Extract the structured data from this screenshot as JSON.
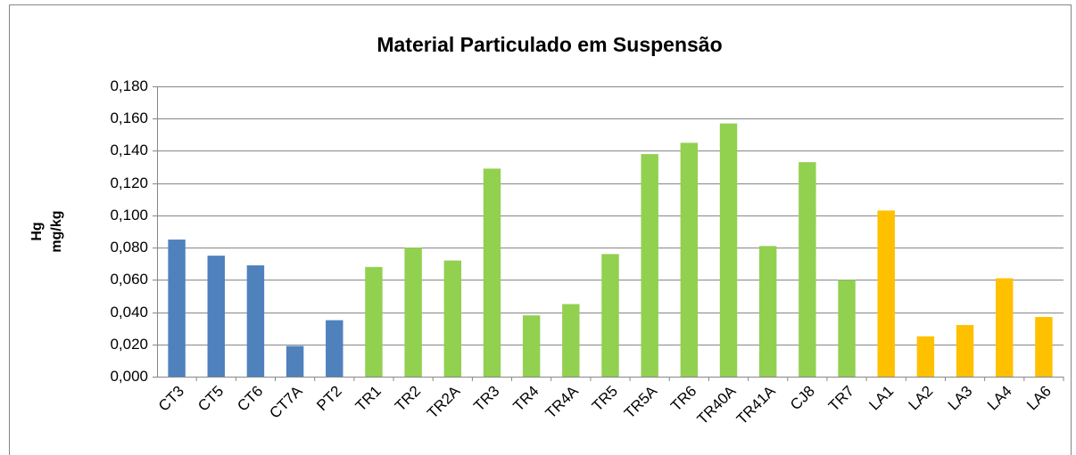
{
  "chart_data": {
    "type": "bar",
    "title": "Material Particulado em Suspensão",
    "ylabel": [
      "Hg",
      "mg/kg"
    ],
    "categories": [
      "CT3",
      "CT5",
      "CT6",
      "CT7A",
      "PT2",
      "TR1",
      "TR2",
      "TR2A",
      "TR3",
      "TR4",
      "TR4A",
      "TR5",
      "TR5A",
      "TR6",
      "TR40A",
      "TR41A",
      "CJ8",
      "TR7",
      "LA1",
      "LA2",
      "LA3",
      "LA4",
      "LA6"
    ],
    "values": [
      0.085,
      0.075,
      0.069,
      0.019,
      0.035,
      0.068,
      0.08,
      0.072,
      0.129,
      0.038,
      0.045,
      0.076,
      0.138,
      0.145,
      0.157,
      0.081,
      0.133,
      0.06,
      0.103,
      0.025,
      0.032,
      0.061,
      0.037
    ],
    "colors": [
      "#4f81bd",
      "#4f81bd",
      "#4f81bd",
      "#4f81bd",
      "#4f81bd",
      "#92d050",
      "#92d050",
      "#92d050",
      "#92d050",
      "#92d050",
      "#92d050",
      "#92d050",
      "#92d050",
      "#92d050",
      "#92d050",
      "#92d050",
      "#92d050",
      "#92d050",
      "#ffc000",
      "#ffc000",
      "#ffc000",
      "#ffc000",
      "#ffc000"
    ],
    "ylim": [
      0,
      0.18
    ],
    "yticks": [
      {
        "value": 0,
        "label": "0,000"
      },
      {
        "value": 0.02,
        "label": "0,020"
      },
      {
        "value": 0.04,
        "label": "0,040"
      },
      {
        "value": 0.06,
        "label": "0,060"
      },
      {
        "value": 0.08,
        "label": "0,080"
      },
      {
        "value": 0.1,
        "label": "0,100"
      },
      {
        "value": 0.12,
        "label": "0,120"
      },
      {
        "value": 0.14,
        "label": "0,140"
      },
      {
        "value": 0.16,
        "label": "0,160"
      },
      {
        "value": 0.18,
        "label": "0,180"
      }
    ],
    "grid": true
  }
}
